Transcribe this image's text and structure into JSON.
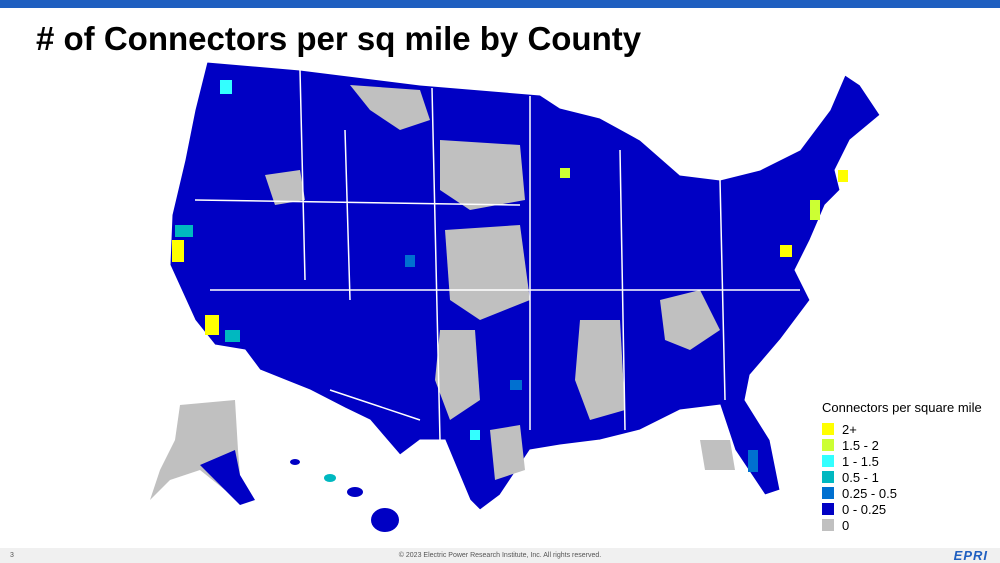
{
  "header": {
    "title": "# of Connectors per sq mile by County"
  },
  "legend": {
    "title": "Connectors per square mile",
    "items": [
      {
        "label": "2+",
        "color": "#ffff00"
      },
      {
        "label": "1.5 - 2",
        "color": "#ccff33"
      },
      {
        "label": "1 - 1.5",
        "color": "#33ffff"
      },
      {
        "label": "0.5 - 1",
        "color": "#00b8c0"
      },
      {
        "label": "0.25 - 0.5",
        "color": "#0070d0"
      },
      {
        "label": "0 - 0.25",
        "color": "#0000c4"
      },
      {
        "label": "0",
        "color": "#c0c0c0"
      }
    ]
  },
  "footer": {
    "page": "3",
    "copyright": "© 2023 Electric Power Research Institute, Inc. All rights reserved.",
    "logo": "EPRI"
  }
}
